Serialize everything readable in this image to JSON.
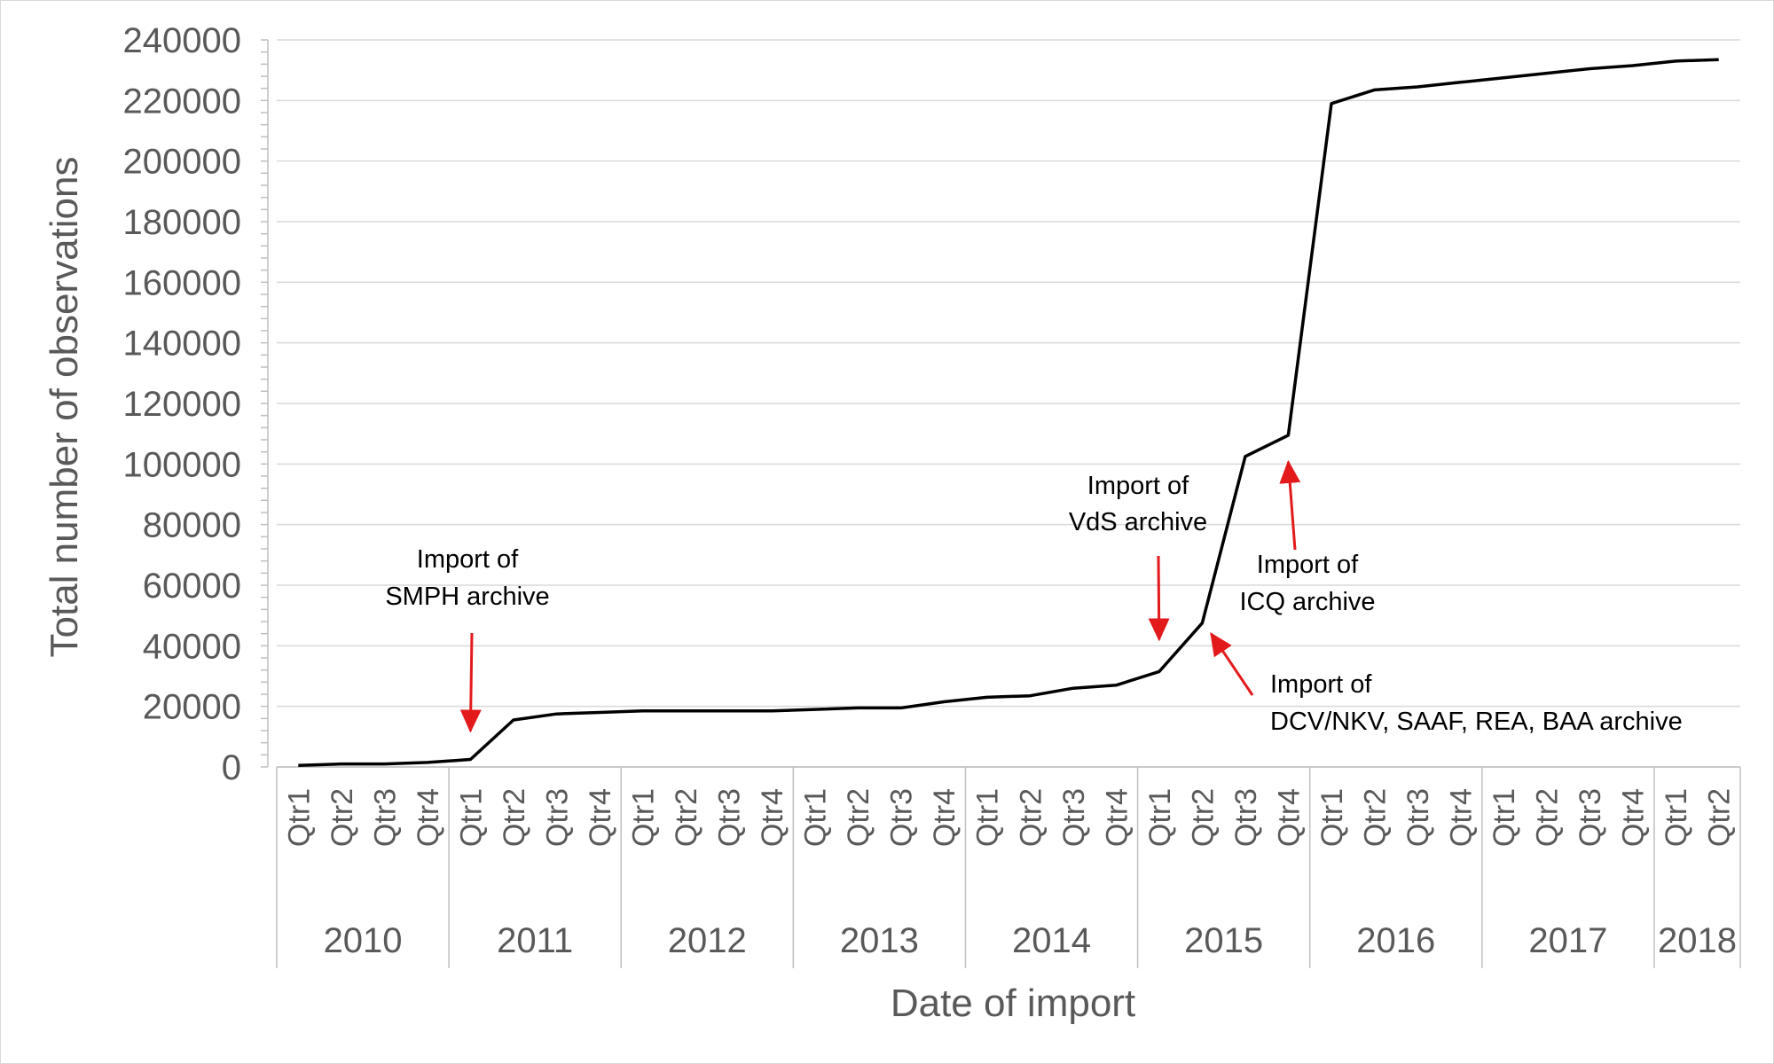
{
  "chart_data": {
    "type": "line",
    "title": "",
    "xlabel": "Date of import",
    "ylabel": "Total number of observations",
    "ylim": [
      0,
      240000
    ],
    "yticks": [
      0,
      20000,
      40000,
      60000,
      80000,
      100000,
      120000,
      140000,
      160000,
      180000,
      200000,
      220000,
      240000
    ],
    "grid": true,
    "legend": "none",
    "line_color": "#000000",
    "annotation_color": "#e31a1c",
    "x": [
      {
        "year": "2010",
        "quarter": "Qtr1"
      },
      {
        "year": "2010",
        "quarter": "Qtr2"
      },
      {
        "year": "2010",
        "quarter": "Qtr3"
      },
      {
        "year": "2010",
        "quarter": "Qtr4"
      },
      {
        "year": "2011",
        "quarter": "Qtr1"
      },
      {
        "year": "2011",
        "quarter": "Qtr2"
      },
      {
        "year": "2011",
        "quarter": "Qtr3"
      },
      {
        "year": "2011",
        "quarter": "Qtr4"
      },
      {
        "year": "2012",
        "quarter": "Qtr1"
      },
      {
        "year": "2012",
        "quarter": "Qtr2"
      },
      {
        "year": "2012",
        "quarter": "Qtr3"
      },
      {
        "year": "2012",
        "quarter": "Qtr4"
      },
      {
        "year": "2013",
        "quarter": "Qtr1"
      },
      {
        "year": "2013",
        "quarter": "Qtr2"
      },
      {
        "year": "2013",
        "quarter": "Qtr3"
      },
      {
        "year": "2013",
        "quarter": "Qtr4"
      },
      {
        "year": "2014",
        "quarter": "Qtr1"
      },
      {
        "year": "2014",
        "quarter": "Qtr2"
      },
      {
        "year": "2014",
        "quarter": "Qtr3"
      },
      {
        "year": "2014",
        "quarter": "Qtr4"
      },
      {
        "year": "2015",
        "quarter": "Qtr1"
      },
      {
        "year": "2015",
        "quarter": "Qtr2"
      },
      {
        "year": "2015",
        "quarter": "Qtr3"
      },
      {
        "year": "2015",
        "quarter": "Qtr4"
      },
      {
        "year": "2016",
        "quarter": "Qtr1"
      },
      {
        "year": "2016",
        "quarter": "Qtr2"
      },
      {
        "year": "2016",
        "quarter": "Qtr3"
      },
      {
        "year": "2016",
        "quarter": "Qtr4"
      },
      {
        "year": "2017",
        "quarter": "Qtr1"
      },
      {
        "year": "2017",
        "quarter": "Qtr2"
      },
      {
        "year": "2017",
        "quarter": "Qtr3"
      },
      {
        "year": "2017",
        "quarter": "Qtr4"
      },
      {
        "year": "2018",
        "quarter": "Qtr1"
      },
      {
        "year": "2018",
        "quarter": "Qtr2"
      }
    ],
    "years": [
      "2010",
      "2011",
      "2012",
      "2013",
      "2014",
      "2015",
      "2016",
      "2017",
      "2018"
    ],
    "series": [
      {
        "values": [
          500,
          1000,
          1000,
          1500,
          2500,
          15500,
          17500,
          18000,
          18500,
          18500,
          18500,
          18500,
          19000,
          19500,
          19500,
          21500,
          23000,
          23500,
          26000,
          27000,
          31500,
          47500,
          102500,
          109500,
          219000,
          223500,
          224500,
          226000,
          227500,
          229000,
          230500,
          231500,
          233000,
          233500
        ]
      }
    ],
    "annotations": [
      {
        "lines": [
          "Import of",
          "SMPH archive"
        ],
        "target": {
          "year": "2011",
          "quarter": "Qtr1"
        }
      },
      {
        "lines": [
          "Import of",
          "VdS archive"
        ],
        "target": {
          "year": "2015",
          "quarter": "Qtr1"
        }
      },
      {
        "lines": [
          "Import of",
          "DCV/NKV, SAAF, REA, BAA archive"
        ],
        "target": {
          "year": "2015",
          "quarter": "Qtr2"
        }
      },
      {
        "lines": [
          "Import of",
          "ICQ archive"
        ],
        "target": {
          "year": "2015",
          "quarter": "Qtr4"
        }
      }
    ]
  }
}
